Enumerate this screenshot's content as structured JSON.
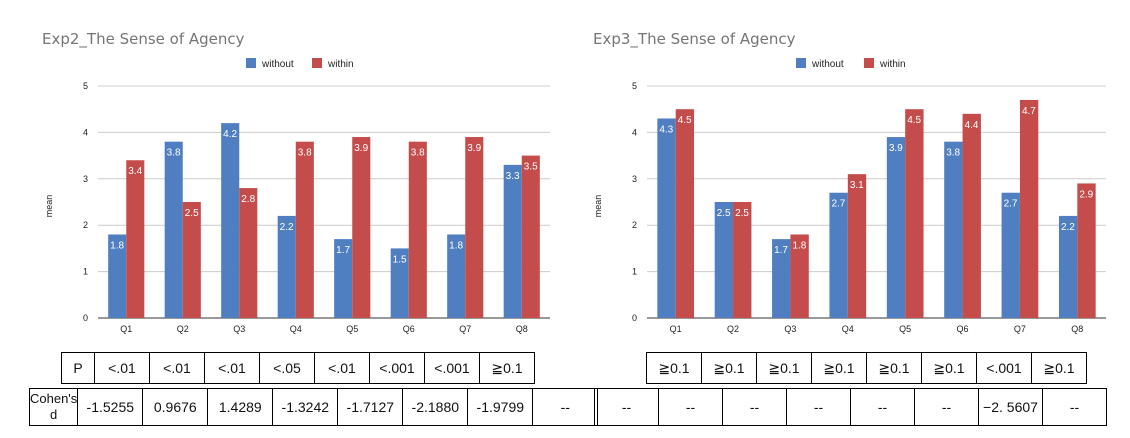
{
  "chart_data": [
    {
      "type": "bar",
      "title": "Exp2_The Sense of Agency",
      "ylabel": "mean",
      "xlabel": "",
      "ylim": [
        0,
        5
      ],
      "yticks": [
        0,
        1,
        2,
        3,
        4,
        5
      ],
      "grid": true,
      "legend": "top-center",
      "categories": [
        "Q1",
        "Q2",
        "Q3",
        "Q4",
        "Q5",
        "Q6",
        "Q7",
        "Q8"
      ],
      "series": [
        {
          "name": "without",
          "color": "#4f7fc0",
          "values": [
            1.8,
            3.8,
            4.2,
            2.2,
            1.7,
            1.5,
            1.8,
            3.3
          ]
        },
        {
          "name": "within",
          "color": "#c44d4b",
          "values": [
            3.4,
            2.5,
            2.8,
            3.8,
            3.9,
            3.8,
            3.9,
            3.5
          ]
        }
      ]
    },
    {
      "type": "bar",
      "title": "Exp3_The Sense of Agency",
      "ylabel": "mean",
      "xlabel": "",
      "ylim": [
        0,
        5
      ],
      "yticks": [
        0,
        1,
        2,
        3,
        4,
        5
      ],
      "grid": true,
      "legend": "top-center",
      "categories": [
        "Q1",
        "Q2",
        "Q3",
        "Q4",
        "Q5",
        "Q6",
        "Q7",
        "Q8"
      ],
      "series": [
        {
          "name": "without",
          "color": "#4f7fc0",
          "values": [
            4.3,
            2.5,
            1.7,
            2.7,
            3.9,
            3.8,
            2.7,
            2.2
          ]
        },
        {
          "name": "within",
          "color": "#c44d4b",
          "values": [
            4.5,
            2.5,
            1.8,
            3.1,
            4.5,
            4.4,
            4.7,
            2.9
          ]
        }
      ]
    }
  ],
  "tables": {
    "exp2_p": {
      "label": "P",
      "values": [
        "<.01",
        "<.01",
        "<.01",
        "<.05",
        "<.01",
        "<.001",
        "<.001",
        "≧0.1"
      ]
    },
    "exp2_d": {
      "label": "Cohen's d",
      "values": [
        "-1.5255",
        "0.9676",
        "1.4289",
        "-1.3242",
        "-1.7127",
        "-2.1880",
        "-1.9799",
        "--"
      ]
    },
    "exp3_p": {
      "values": [
        "≧0.1",
        "≧0.1",
        "≧0.1",
        "≧0.1",
        "≧0.1",
        "≧0.1",
        "<.001",
        "≧0.1"
      ]
    },
    "exp3_d": {
      "values": [
        "--",
        "--",
        "--",
        "--",
        "--",
        "--",
        "−2. 5607",
        "--"
      ]
    }
  }
}
